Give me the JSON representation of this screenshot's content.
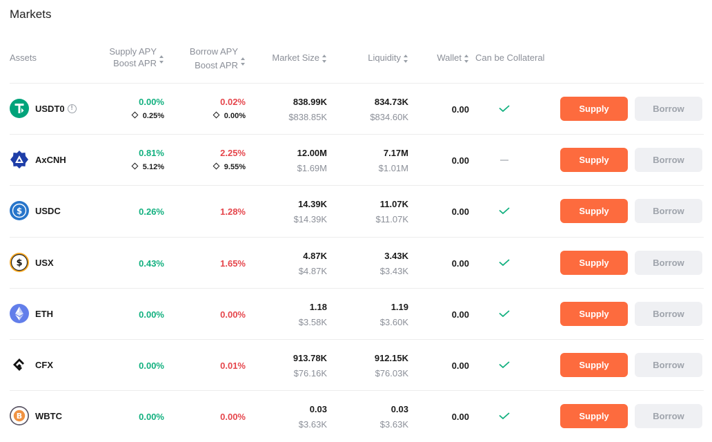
{
  "page": {
    "title": "Markets"
  },
  "colors": {
    "green": "#12b07f",
    "red": "#e5454b",
    "accent": "#fd6b3e",
    "muted": "#8b8f98"
  },
  "headers": {
    "assets": "Assets",
    "supply_line1": "Supply APY",
    "supply_line2": "Boost APR",
    "borrow_line1": "Borrow APY",
    "borrow_line2": "Boost APR",
    "market_size": "Market Size",
    "liquidity": "Liquidity",
    "wallet": "Wallet",
    "collateral": "Can be Collateral"
  },
  "buttons": {
    "supply": "Supply",
    "borrow": "Borrow"
  },
  "assets": [
    {
      "name": "USDT0",
      "icon": "usdt0-icon",
      "supply_apy": "0.00%",
      "supply_boost": "0.25%",
      "borrow_apy": "0.02%",
      "borrow_boost": "0.00%",
      "market_size": "838.99K",
      "market_size_usd": "$838.85K",
      "liquidity": "834.73K",
      "liquidity_usd": "$834.60K",
      "wallet": "0.00",
      "collateral": true
    },
    {
      "name": "AxCNH",
      "icon": "axcnh-icon",
      "supply_apy": "0.81%",
      "supply_boost": "5.12%",
      "borrow_apy": "2.25%",
      "borrow_boost": "9.55%",
      "market_size": "12.00M",
      "market_size_usd": "$1.69M",
      "liquidity": "7.17M",
      "liquidity_usd": "$1.01M",
      "wallet": "0.00",
      "collateral": false
    },
    {
      "name": "USDC",
      "icon": "usdc-icon",
      "supply_apy": "0.26%",
      "borrow_apy": "1.28%",
      "market_size": "14.39K",
      "market_size_usd": "$14.39K",
      "liquidity": "11.07K",
      "liquidity_usd": "$11.07K",
      "wallet": "0.00",
      "collateral": true
    },
    {
      "name": "USX",
      "icon": "usx-icon",
      "supply_apy": "0.43%",
      "borrow_apy": "1.65%",
      "market_size": "4.87K",
      "market_size_usd": "$4.87K",
      "liquidity": "3.43K",
      "liquidity_usd": "$3.43K",
      "wallet": "0.00",
      "collateral": true
    },
    {
      "name": "ETH",
      "icon": "eth-icon",
      "supply_apy": "0.00%",
      "borrow_apy": "0.00%",
      "market_size": "1.18",
      "market_size_usd": "$3.58K",
      "liquidity": "1.19",
      "liquidity_usd": "$3.60K",
      "wallet": "0.00",
      "collateral": true
    },
    {
      "name": "CFX",
      "icon": "cfx-icon",
      "supply_apy": "0.00%",
      "borrow_apy": "0.01%",
      "market_size": "913.78K",
      "market_size_usd": "$76.16K",
      "liquidity": "912.15K",
      "liquidity_usd": "$76.03K",
      "wallet": "0.00",
      "collateral": true
    },
    {
      "name": "WBTC",
      "icon": "wbtc-icon",
      "supply_apy": "0.00%",
      "borrow_apy": "0.00%",
      "market_size": "0.03",
      "market_size_usd": "$3.63K",
      "liquidity": "0.03",
      "liquidity_usd": "$3.63K",
      "wallet": "0.00",
      "collateral": true
    }
  ]
}
